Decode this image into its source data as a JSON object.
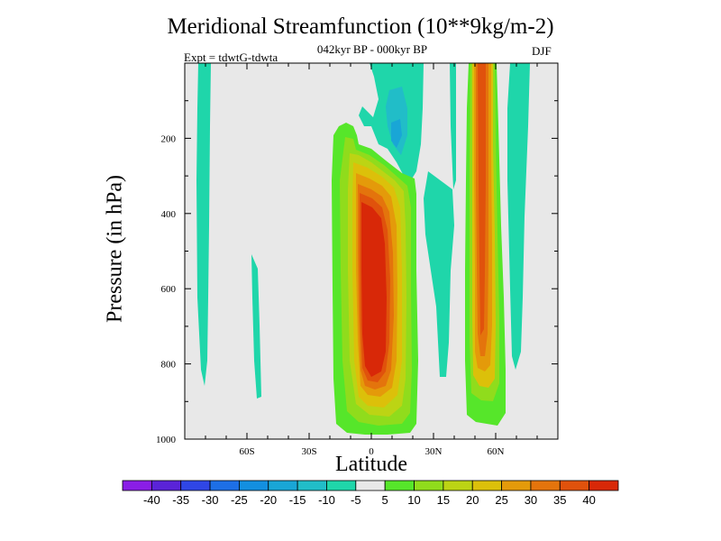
{
  "chart_data": {
    "type": "contour",
    "title": "Meridional Streamfunction (10**9kg/m-2)",
    "subtitle": "042kyr BP - 000kyr BP",
    "expt_label": "Expt = tdwtG-tdwta",
    "season": "DJF",
    "xlabel": "Latitude",
    "ylabel": "Pressure (in hPa)",
    "xlim": [
      -90,
      90
    ],
    "ylim": [
      1000,
      0
    ],
    "x_ticks": [
      {
        "value": -60,
        "label": "60S"
      },
      {
        "value": -30,
        "label": "30S"
      },
      {
        "value": 0,
        "label": "0"
      },
      {
        "value": 30,
        "label": "30N"
      },
      {
        "value": 60,
        "label": "60N"
      }
    ],
    "y_ticks": [
      {
        "value": 200,
        "label": "200"
      },
      {
        "value": 400,
        "label": "400"
      },
      {
        "value": 600,
        "label": "600"
      },
      {
        "value": 800,
        "label": "800"
      },
      {
        "value": 1000,
        "label": "1000"
      }
    ],
    "colorbar": {
      "labels": [
        "-40",
        "-35",
        "-30",
        "-25",
        "-20",
        "-15",
        "-10",
        "-5",
        "5",
        "10",
        "15",
        "20",
        "25",
        "30",
        "35",
        "40"
      ],
      "colors": [
        "#8a1ee6",
        "#5a23d8",
        "#2f46e6",
        "#1d6fe6",
        "#138fe0",
        "#19a6d6",
        "#21bdc8",
        "#1fd6aa",
        "#e8e8e8",
        "#56e62a",
        "#90dc1c",
        "#bcd414",
        "#dcc00a",
        "#e49a0a",
        "#e4740c",
        "#e0520c",
        "#d82808"
      ]
    },
    "features": [
      {
        "name": "equatorial positive cell",
        "lat_range": [
          -15,
          20
        ],
        "p_range": [
          170,
          990
        ],
        "peak_value": 40
      },
      {
        "name": "northern midlatitude positive band",
        "lat_range": [
          47,
          66
        ],
        "p_range": [
          0,
          960
        ],
        "peak_value": 30
      },
      {
        "name": "southern negative band",
        "lat_range": [
          -85,
          -78
        ],
        "p_range": [
          0,
          860
        ],
        "peak_value": -5
      },
      {
        "name": "southern lower negative patch",
        "lat_range": [
          -58,
          -54
        ],
        "p_range": [
          490,
          885
        ],
        "peak_value": -5
      },
      {
        "name": "upper tropical negative patch",
        "lat_range": [
          -5,
          35
        ],
        "p_range": [
          0,
          370
        ],
        "peak_value": -20
      },
      {
        "name": "northern subtropical negative band",
        "lat_range": [
          27,
          40
        ],
        "p_range": [
          200,
          790
        ],
        "peak_value": -5
      },
      {
        "name": "northern negative band",
        "lat_range": [
          66,
          78
        ],
        "p_range": [
          0,
          840
        ],
        "peak_value": -5
      }
    ]
  }
}
